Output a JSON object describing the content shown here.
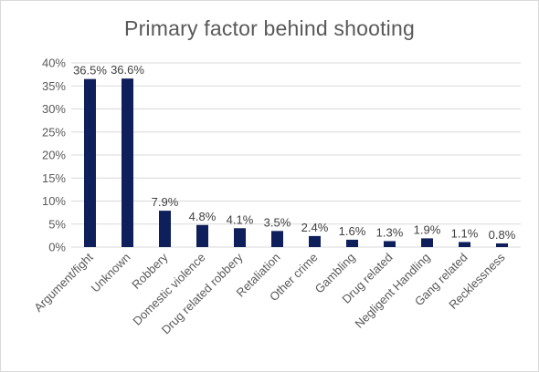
{
  "chart_data": {
    "type": "bar",
    "title": "Primary factor behind shooting",
    "xlabel": "",
    "ylabel": "",
    "categories": [
      "Argument/fight",
      "Unknown",
      "Robbery",
      "Domestic violence",
      "Drug related robbery",
      "Retaliation",
      "Other crime",
      "Gambling",
      "Drug related",
      "Negligent Handling",
      "Gang related",
      "Recklessness"
    ],
    "values": [
      36.5,
      36.6,
      7.9,
      4.8,
      4.1,
      3.5,
      2.4,
      1.6,
      1.3,
      1.9,
      1.1,
      0.8
    ],
    "data_labels": [
      "36.5%",
      "36.6%",
      "7.9%",
      "4.8%",
      "4.1%",
      "3.5%",
      "2.4%",
      "1.6%",
      "1.3%",
      "1.9%",
      "1.1%",
      "0.8%"
    ],
    "ylim": [
      0,
      40
    ],
    "yticks": [
      0,
      5,
      10,
      15,
      20,
      25,
      30,
      35,
      40
    ],
    "ytick_labels": [
      "0%",
      "5%",
      "10%",
      "15%",
      "20%",
      "25%",
      "30%",
      "35%",
      "40%"
    ],
    "grid": true,
    "legend": "none",
    "colors": {
      "bar": "#0e1f5b",
      "grid": "#d9d9d9",
      "text": "#595959"
    }
  }
}
